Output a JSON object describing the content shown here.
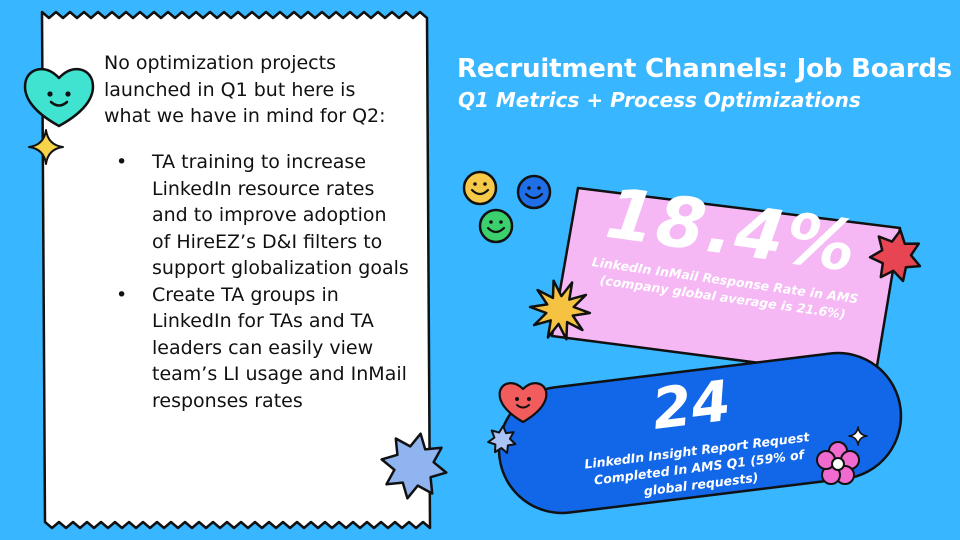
{
  "header": {
    "title": "Recruitment Channels: Job Boards",
    "subtitle": "Q1 Metrics + Process Optimizations"
  },
  "notes": {
    "intro": "No optimization projects launched in Q1 but here is what we have in mind for Q2:",
    "bullets": [
      "TA training to increase LinkedIn resource rates and to improve adoption of HireEZ’s D&I filters to support globalization goals",
      "Create TA groups in LinkedIn for TAs and TA leaders can easily view team’s LI usage and InMail responses rates"
    ]
  },
  "stats": {
    "inmail": {
      "value": "18.4%",
      "caption": "LinkedIn InMail Response Rate in AMS (company global average is 21.6%)"
    },
    "insight": {
      "value": "24",
      "caption": "LinkedIn Insight Report Request Completed In AMS Q1 (59% of global requests)"
    }
  },
  "colors": {
    "background": "#38b6ff",
    "paper": "#ffffff",
    "pink_card": "#f5b8f5",
    "blue_pill": "#1167e8",
    "outline": "#111111",
    "starburst_red": "#e84552",
    "starburst_yellow": "#f5c242",
    "star_light_blue": "#8fb4f0",
    "heart_teal": "#3fe3d0",
    "heart_red": "#f25c5c",
    "flower_pink": "#f06ad0",
    "smiley_yellow": "#f7c948",
    "smiley_blue": "#1f6fe8",
    "smiley_green": "#3ccf6e"
  },
  "icons": [
    "heart-face-icon",
    "sparkle-icon",
    "starburst-icon",
    "smiley-face-icon",
    "flower-icon"
  ]
}
